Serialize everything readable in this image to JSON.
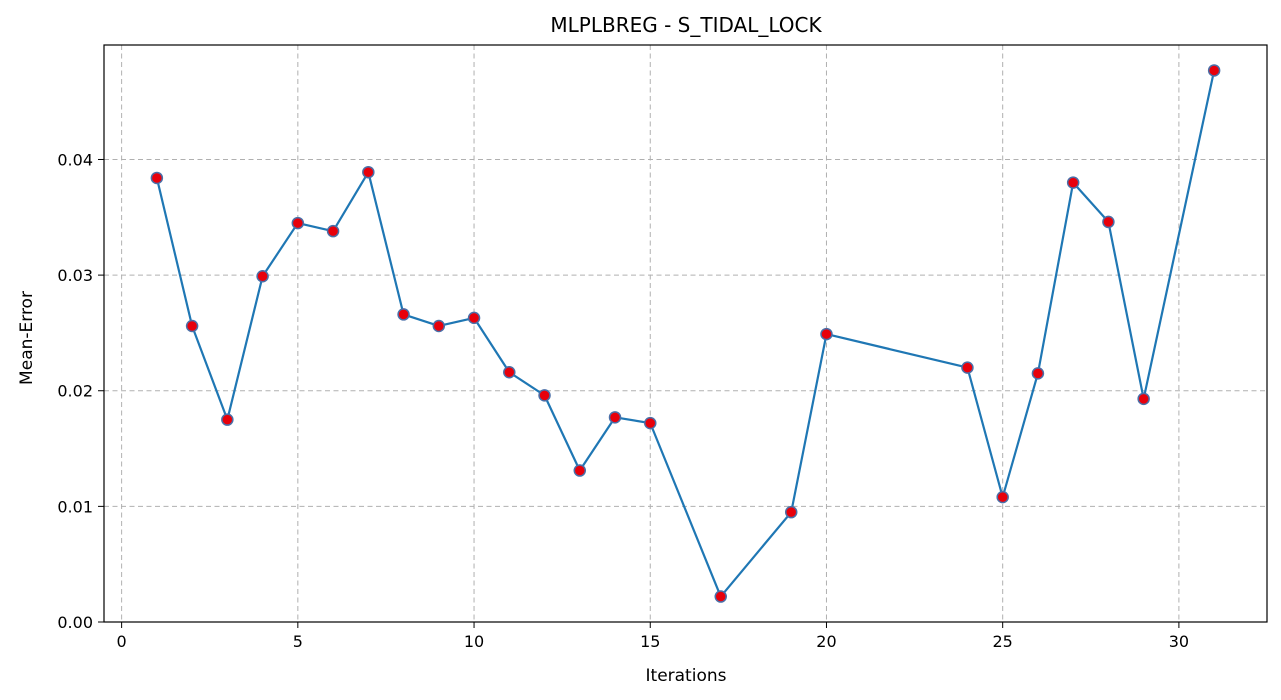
{
  "chart_data": {
    "type": "line",
    "title": "MLPLBREG - S_TIDAL_LOCK",
    "xlabel": "Iterations",
    "ylabel": "Mean-Error",
    "xlim": [
      -0.5,
      32.5
    ],
    "ylim": [
      0,
      0.0499
    ],
    "xticks": [
      0,
      5,
      10,
      15,
      20,
      25,
      30
    ],
    "yticks": [
      0.0,
      0.01,
      0.02,
      0.03,
      0.04
    ],
    "ytick_labels": [
      "0.00",
      "0.01",
      "0.02",
      "0.03",
      "0.04"
    ],
    "grid": true,
    "line_color": "#1f77b4",
    "marker_color": "#e8000b",
    "marker_edge_color": "#4a6fa8",
    "series": [
      {
        "x": [
          1,
          2,
          3,
          4,
          5,
          6,
          7,
          8,
          9,
          10,
          11,
          12,
          13,
          14,
          15,
          17,
          19,
          20,
          24,
          25,
          26,
          27,
          28,
          29,
          31
        ],
        "values": [
          0.0384,
          0.0256,
          0.0175,
          0.0299,
          0.0345,
          0.0338,
          0.0389,
          0.0266,
          0.0256,
          0.0263,
          0.0216,
          0.0196,
          0.0131,
          0.0177,
          0.0172,
          0.0022,
          0.0095,
          0.0249,
          0.022,
          0.0108,
          0.0215,
          0.038,
          0.0346,
          0.0193,
          0.0477
        ]
      }
    ]
  }
}
